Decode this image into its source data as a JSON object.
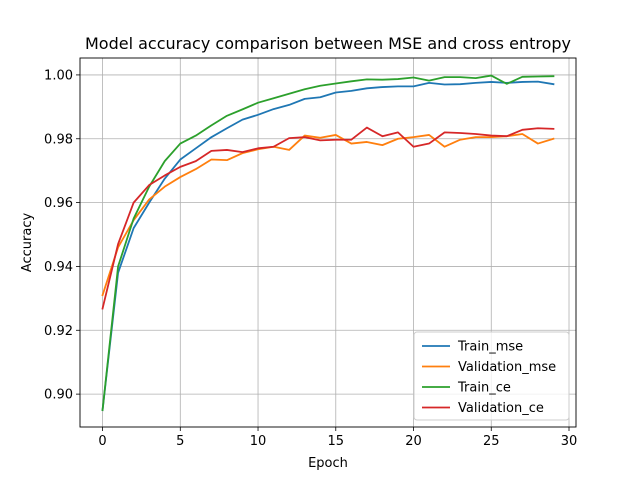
{
  "chart_data": {
    "type": "line",
    "title": "Model accuracy comparison between MSE and cross entropy",
    "xlabel": "Epoch",
    "ylabel": "Accuracy",
    "xlim": [
      -1.45,
      30.45
    ],
    "ylim": [
      0.8897,
      1.0053
    ],
    "xticks": [
      0,
      5,
      10,
      15,
      20,
      25,
      30
    ],
    "yticks": [
      0.9,
      0.92,
      0.94,
      0.96,
      0.98,
      1.0
    ],
    "ytick_labels": [
      "0.90",
      "0.92",
      "0.94",
      "0.96",
      "0.98",
      "1.00"
    ],
    "grid": true,
    "legend_position": "lower-right",
    "x": [
      0,
      1,
      2,
      3,
      4,
      5,
      6,
      7,
      8,
      9,
      10,
      11,
      12,
      13,
      14,
      15,
      16,
      17,
      18,
      19,
      20,
      21,
      22,
      23,
      24,
      25,
      26,
      27,
      28,
      29
    ],
    "series": [
      {
        "name": "Train_mse",
        "color": "#1f77b4",
        "values": [
          0.895,
          0.938,
          0.952,
          0.96,
          0.9675,
          0.9735,
          0.977,
          0.9805,
          0.9833,
          0.986,
          0.9875,
          0.9893,
          0.9906,
          0.9925,
          0.993,
          0.9945,
          0.995,
          0.9958,
          0.9962,
          0.9964,
          0.9964,
          0.9975,
          0.997,
          0.9971,
          0.9975,
          0.9978,
          0.9975,
          0.9978,
          0.9979,
          0.9971
        ]
      },
      {
        "name": "Validation_mse",
        "color": "#ff7f0e",
        "values": [
          0.931,
          0.946,
          0.9545,
          0.961,
          0.965,
          0.968,
          0.9705,
          0.9735,
          0.9733,
          0.9755,
          0.9767,
          0.9775,
          0.9765,
          0.981,
          0.9803,
          0.9812,
          0.9785,
          0.979,
          0.978,
          0.98,
          0.9805,
          0.9812,
          0.9775,
          0.9797,
          0.9805,
          0.9805,
          0.9808,
          0.9815,
          0.9785,
          0.98
        ]
      },
      {
        "name": "Train_ce",
        "color": "#2ca02c",
        "values": [
          0.895,
          0.94,
          0.955,
          0.965,
          0.973,
          0.9785,
          0.981,
          0.9842,
          0.9872,
          0.9892,
          0.9913,
          0.9927,
          0.9941,
          0.9955,
          0.9966,
          0.9973,
          0.998,
          0.9986,
          0.9985,
          0.9987,
          0.9992,
          0.9982,
          0.9993,
          0.9993,
          0.999,
          0.9998,
          0.9972,
          0.9994,
          0.9995,
          0.9996
        ]
      },
      {
        "name": "Validation_ce",
        "color": "#d62728",
        "values": [
          0.9268,
          0.947,
          0.96,
          0.9655,
          0.9685,
          0.9712,
          0.973,
          0.9762,
          0.9765,
          0.9758,
          0.977,
          0.9775,
          0.9802,
          0.9805,
          0.9795,
          0.9797,
          0.9797,
          0.9835,
          0.9808,
          0.982,
          0.9775,
          0.9785,
          0.982,
          0.9818,
          0.9815,
          0.981,
          0.9808,
          0.9828,
          0.9833,
          0.9831
        ]
      }
    ]
  }
}
